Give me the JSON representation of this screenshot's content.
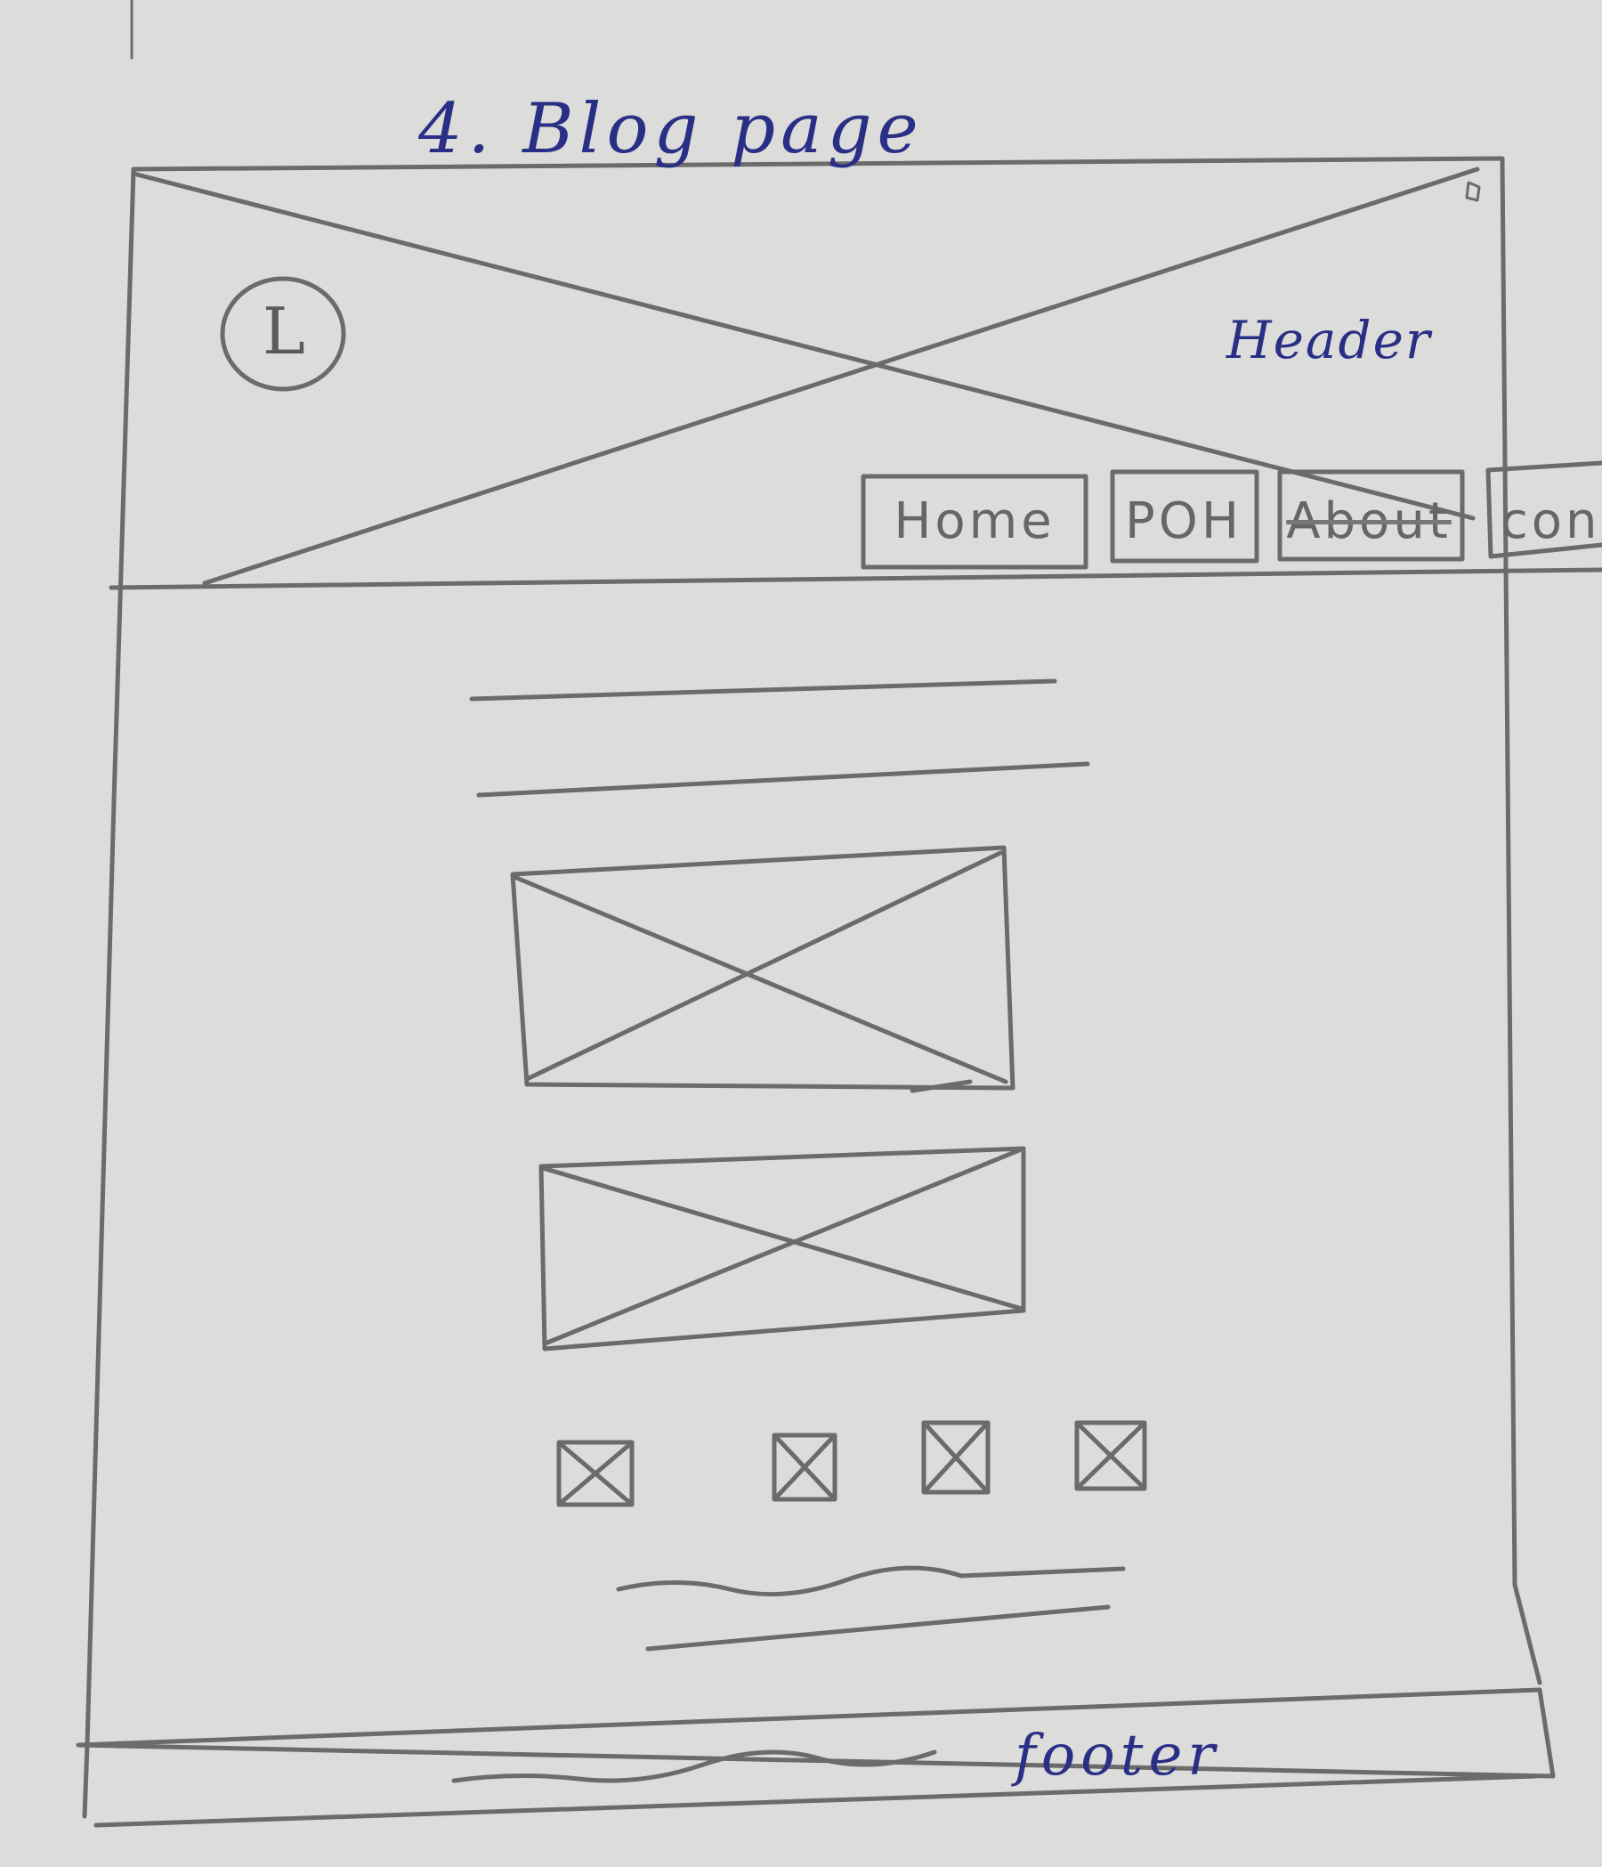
{
  "title": "4. Blog page",
  "header": {
    "label": "Header",
    "logo_letter": "L",
    "nav": [
      {
        "label": "Home"
      },
      {
        "label": "POH"
      },
      {
        "label": "About"
      },
      {
        "label": "con"
      }
    ]
  },
  "footer": {
    "label": "footer"
  },
  "colors": {
    "ink": "#2a2f86",
    "pencil": "#666666",
    "paper": "#dcdcda"
  }
}
